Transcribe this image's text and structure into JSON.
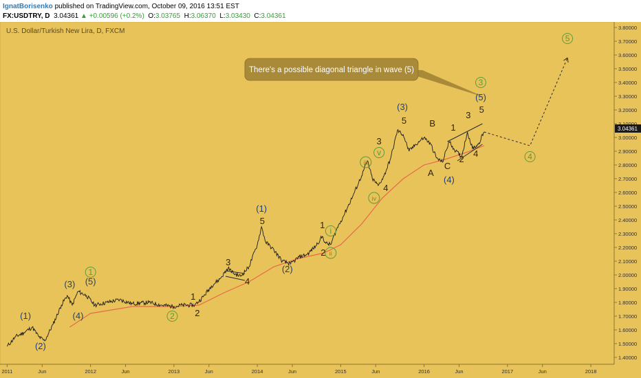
{
  "header": {
    "author": "IgnatBorisenko",
    "published": "published on TradingView.com, October 09, 2016 13:51 EST",
    "symbol": "FX:USDTRY, D",
    "price": "3.04361",
    "change": "+0.00596 (+0.2%)",
    "open_label": "O:",
    "open": "3.03765",
    "high_label": "H:",
    "high": "3.06370",
    "low_label": "L:",
    "low": "3.03430",
    "close_label": "C:",
    "close": "3.04361"
  },
  "chart": {
    "title": "U.S. Dollar/Turkish New Lira, D, FXCM",
    "last_price_label": "3.04361",
    "callout": "There's a possible diagonal triangle in wave (5)",
    "colors": {
      "background": "#e8c35a",
      "price": "#1a1a1a",
      "ma": "#e8684a",
      "wave_blue": "#1f3f7a",
      "wave_green": "#5c9a38",
      "callout": "#a88a38"
    }
  },
  "chart_data": {
    "type": "line",
    "x_axis_labels": [
      "2011",
      "Jun",
      "2012",
      "Jun",
      "2013",
      "Jun",
      "2014",
      "Jun",
      "2015",
      "Jun",
      "2016",
      "Jun",
      "2017",
      "Jun",
      "2018"
    ],
    "y_axis_labels": [
      "3.80000",
      "3.70000",
      "3.60000",
      "3.50000",
      "3.40000",
      "3.30000",
      "3.20000",
      "3.10000",
      "3.00000",
      "2.90000",
      "2.80000",
      "2.70000",
      "2.60000",
      "2.50000",
      "2.40000",
      "2.30000",
      "2.20000",
      "2.10000",
      "2.00000",
      "1.90000",
      "1.80000",
      "1.70000",
      "1.60000",
      "1.50000",
      "1.40000"
    ],
    "ylim": [
      1.35,
      3.84
    ],
    "xlim": [
      2010.98,
      2018.28
    ],
    "series": [
      {
        "role": "price",
        "points": [
          [
            2011.0,
            1.48
          ],
          [
            2011.1,
            1.55
          ],
          [
            2011.2,
            1.58
          ],
          [
            2011.3,
            1.62
          ],
          [
            2011.38,
            1.55
          ],
          [
            2011.45,
            1.52
          ],
          [
            2011.55,
            1.64
          ],
          [
            2011.65,
            1.78
          ],
          [
            2011.72,
            1.85
          ],
          [
            2011.78,
            1.78
          ],
          [
            2011.85,
            1.88
          ],
          [
            2011.95,
            1.85
          ],
          [
            2012.05,
            1.78
          ],
          [
            2012.2,
            1.8
          ],
          [
            2012.35,
            1.82
          ],
          [
            2012.5,
            1.79
          ],
          [
            2012.7,
            1.8
          ],
          [
            2012.85,
            1.78
          ],
          [
            2013.0,
            1.77
          ],
          [
            2013.1,
            1.78
          ],
          [
            2013.25,
            1.78
          ],
          [
            2013.35,
            1.84
          ],
          [
            2013.45,
            1.92
          ],
          [
            2013.55,
            1.97
          ],
          [
            2013.65,
            2.05
          ],
          [
            2013.72,
            2.01
          ],
          [
            2013.8,
            1.99
          ],
          [
            2013.9,
            2.06
          ],
          [
            2014.0,
            2.22
          ],
          [
            2014.05,
            2.35
          ],
          [
            2014.1,
            2.24
          ],
          [
            2014.2,
            2.18
          ],
          [
            2014.3,
            2.1
          ],
          [
            2014.4,
            2.08
          ],
          [
            2014.5,
            2.13
          ],
          [
            2014.6,
            2.15
          ],
          [
            2014.7,
            2.21
          ],
          [
            2014.78,
            2.28
          ],
          [
            2014.82,
            2.23
          ],
          [
            2014.88,
            2.22
          ],
          [
            2014.95,
            2.33
          ],
          [
            2015.05,
            2.45
          ],
          [
            2015.15,
            2.58
          ],
          [
            2015.25,
            2.72
          ],
          [
            2015.32,
            2.83
          ],
          [
            2015.38,
            2.7
          ],
          [
            2015.45,
            2.65
          ],
          [
            2015.52,
            2.72
          ],
          [
            2015.6,
            2.85
          ],
          [
            2015.68,
            3.05
          ],
          [
            2015.75,
            3.02
          ],
          [
            2015.82,
            2.9
          ],
          [
            2015.9,
            2.95
          ],
          [
            2016.0,
            3.0
          ],
          [
            2016.08,
            2.95
          ],
          [
            2016.15,
            2.85
          ],
          [
            2016.22,
            2.82
          ],
          [
            2016.3,
            2.97
          ],
          [
            2016.38,
            2.9
          ],
          [
            2016.45,
            2.86
          ],
          [
            2016.52,
            3.04
          ],
          [
            2016.58,
            2.92
          ],
          [
            2016.65,
            2.95
          ],
          [
            2016.72,
            3.04
          ]
        ]
      },
      {
        "role": "moving-average",
        "points": [
          [
            2011.75,
            1.62
          ],
          [
            2012.0,
            1.72
          ],
          [
            2012.5,
            1.77
          ],
          [
            2013.0,
            1.77
          ],
          [
            2013.3,
            1.78
          ],
          [
            2013.6,
            1.87
          ],
          [
            2013.9,
            1.95
          ],
          [
            2014.2,
            2.06
          ],
          [
            2014.5,
            2.12
          ],
          [
            2014.8,
            2.16
          ],
          [
            2015.0,
            2.22
          ],
          [
            2015.25,
            2.37
          ],
          [
            2015.5,
            2.56
          ],
          [
            2015.75,
            2.7
          ],
          [
            2016.0,
            2.8
          ],
          [
            2016.25,
            2.84
          ],
          [
            2016.5,
            2.89
          ],
          [
            2016.72,
            2.94
          ]
        ]
      },
      {
        "role": "projection",
        "points": [
          [
            2016.72,
            3.04
          ],
          [
            2017.27,
            2.94
          ],
          [
            2017.72,
            3.58
          ]
        ]
      }
    ],
    "annotations": [
      {
        "text": "(1)",
        "x": 2011.22,
        "y": 1.68,
        "color": "blue"
      },
      {
        "text": "(2)",
        "x": 2011.4,
        "y": 1.46,
        "color": "blue"
      },
      {
        "text": "(3)",
        "x": 2011.75,
        "y": 1.91,
        "color": "blue"
      },
      {
        "text": "(4)",
        "x": 2011.85,
        "y": 1.68,
        "color": "blue"
      },
      {
        "text": "(5)",
        "x": 2012.0,
        "y": 1.93,
        "color": "blue"
      },
      {
        "text": "1",
        "x": 2012.0,
        "y": 2.0,
        "color": "green",
        "circled": true
      },
      {
        "text": "2",
        "x": 2012.98,
        "y": 1.68,
        "color": "green",
        "circled": true
      },
      {
        "text": "1",
        "x": 2013.23,
        "y": 1.82,
        "color": "dark"
      },
      {
        "text": "2",
        "x": 2013.28,
        "y": 1.7,
        "color": "dark"
      },
      {
        "text": "3",
        "x": 2013.65,
        "y": 2.07,
        "color": "dark"
      },
      {
        "text": "4",
        "x": 2013.88,
        "y": 1.93,
        "color": "dark"
      },
      {
        "text": "(1)",
        "x": 2014.05,
        "y": 2.46,
        "color": "blue"
      },
      {
        "text": "5",
        "x": 2014.06,
        "y": 2.37,
        "color": "dark"
      },
      {
        "text": "(2)",
        "x": 2014.36,
        "y": 2.02,
        "color": "blue"
      },
      {
        "text": "1",
        "x": 2014.78,
        "y": 2.34,
        "color": "dark"
      },
      {
        "text": "i",
        "x": 2014.88,
        "y": 2.3,
        "color": "green",
        "circled": true
      },
      {
        "text": "2",
        "x": 2014.79,
        "y": 2.14,
        "color": "dark"
      },
      {
        "text": "ii",
        "x": 2014.88,
        "y": 2.14,
        "color": "green",
        "circled": true
      },
      {
        "text": "iii",
        "x": 2015.3,
        "y": 2.8,
        "color": "green",
        "circled": true
      },
      {
        "text": "iv",
        "x": 2015.4,
        "y": 2.54,
        "color": "green",
        "circled": true
      },
      {
        "text": "v",
        "x": 2015.46,
        "y": 2.87,
        "color": "green",
        "circled": true
      },
      {
        "text": "3",
        "x": 2015.46,
        "y": 2.95,
        "color": "dark"
      },
      {
        "text": "4",
        "x": 2015.54,
        "y": 2.61,
        "color": "dark"
      },
      {
        "text": "(3)",
        "x": 2015.74,
        "y": 3.2,
        "color": "blue"
      },
      {
        "text": "5",
        "x": 2015.76,
        "y": 3.1,
        "color": "dark"
      },
      {
        "text": "A",
        "x": 2016.08,
        "y": 2.72,
        "color": "dark"
      },
      {
        "text": "B",
        "x": 2016.1,
        "y": 3.08,
        "color": "dark"
      },
      {
        "text": "C",
        "x": 2016.28,
        "y": 2.77,
        "color": "dark"
      },
      {
        "text": "(4)",
        "x": 2016.3,
        "y": 2.67,
        "color": "blue"
      },
      {
        "text": "1",
        "x": 2016.35,
        "y": 3.05,
        "color": "dark"
      },
      {
        "text": "2",
        "x": 2016.45,
        "y": 2.82,
        "color": "dark"
      },
      {
        "text": "3",
        "x": 2016.53,
        "y": 3.14,
        "color": "dark"
      },
      {
        "text": "4",
        "x": 2016.62,
        "y": 2.86,
        "color": "dark"
      },
      {
        "text": "5",
        "x": 2016.69,
        "y": 3.18,
        "color": "dark"
      },
      {
        "text": "(5)",
        "x": 2016.68,
        "y": 3.27,
        "color": "blue"
      },
      {
        "text": "3",
        "x": 2016.68,
        "y": 3.38,
        "color": "green",
        "circled": true
      },
      {
        "text": "4",
        "x": 2017.27,
        "y": 2.84,
        "color": "green",
        "circled": true
      },
      {
        "text": "5",
        "x": 2017.72,
        "y": 3.7,
        "color": "green",
        "circled": true
      }
    ]
  }
}
